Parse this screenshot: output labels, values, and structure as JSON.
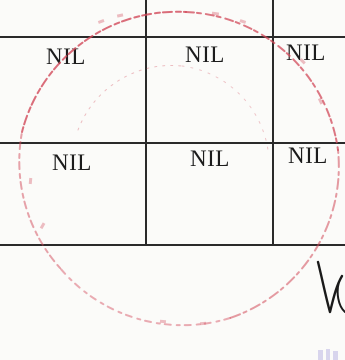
{
  "table": {
    "rows": [
      [
        "NIL",
        "NIL",
        "NIL"
      ],
      [
        "NIL",
        "NIL",
        "NIL"
      ]
    ]
  },
  "stamp": {
    "color": "#d24a5a",
    "shape": "circle"
  },
  "signature": {
    "color": "#1a1a1a"
  },
  "colors": {
    "grid": "#2a2a2a",
    "text": "#1c1c1c",
    "paper": "#fbfbf9"
  }
}
